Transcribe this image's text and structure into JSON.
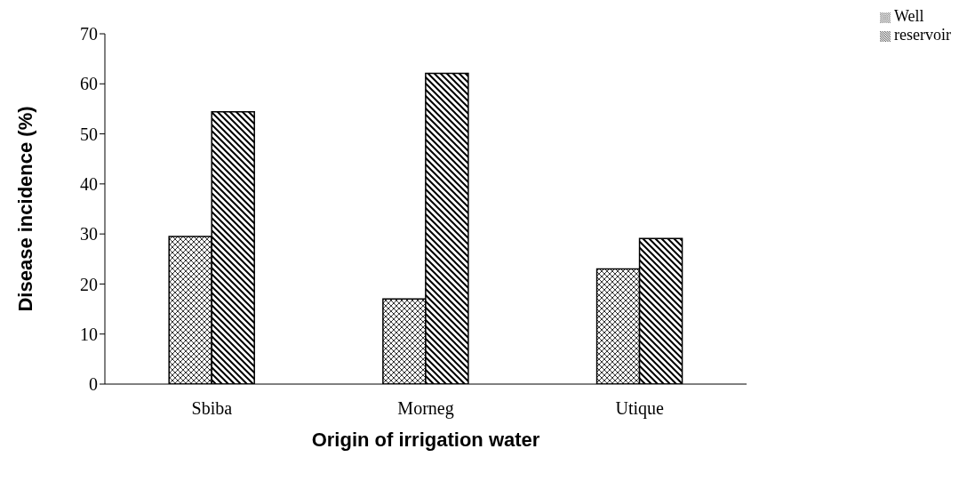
{
  "chart_data": {
    "type": "bar",
    "xlabel": "Origin of irrigation water",
    "ylabel": "Disease incidence (%)",
    "categories": [
      "Sbiba",
      "Morneg",
      "Utique"
    ],
    "series": [
      {
        "name": "Well",
        "color": "#000000",
        "values": [
          29.5,
          17.0,
          23.0
        ]
      },
      {
        "name": "reservoir",
        "color": "#000000",
        "values": [
          54.4,
          62.1,
          29.1
        ]
      }
    ],
    "ylim": [
      0,
      70
    ],
    "yticks": [
      0,
      10,
      20,
      30,
      40,
      50,
      60,
      70
    ],
    "grid": false,
    "legend": "top right"
  }
}
